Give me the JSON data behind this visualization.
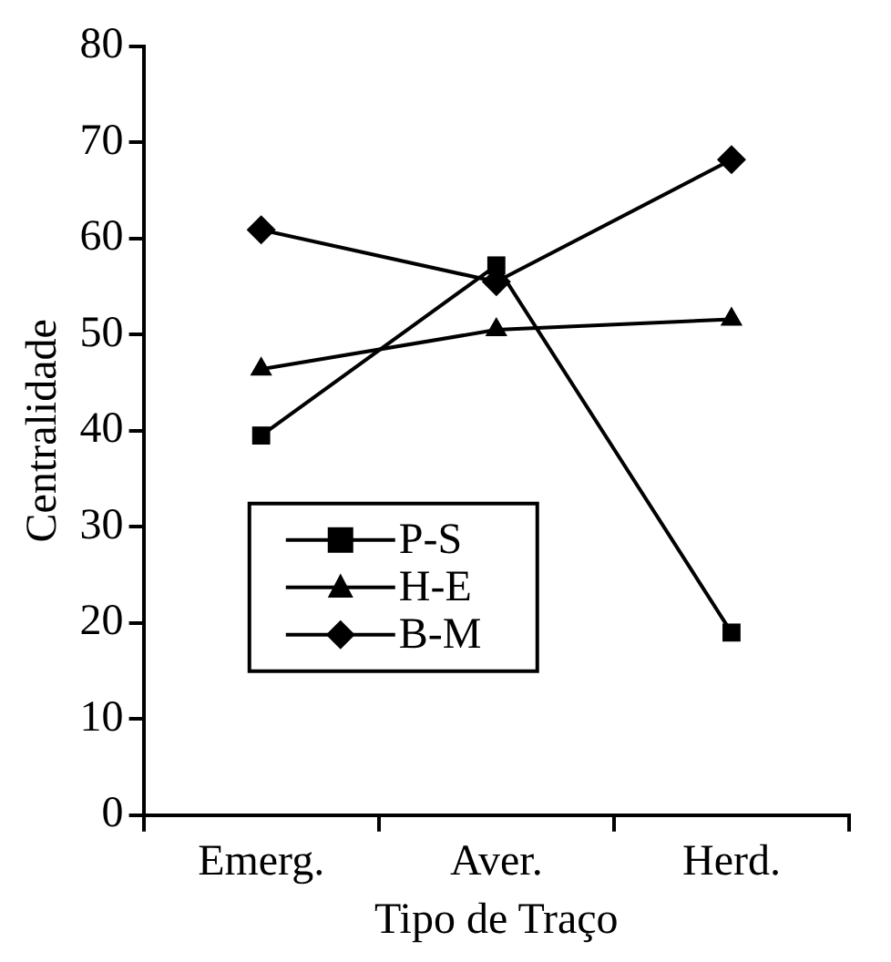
{
  "chart_data": {
    "type": "line",
    "xlabel": "Tipo de Traço",
    "ylabel": "Centralidade",
    "categories": [
      "Emerg.",
      "Aver.",
      "Herd."
    ],
    "series": [
      {
        "name": "P-S",
        "color": "#000000",
        "marker": "square",
        "values": [
          39.5,
          57.2,
          19
        ]
      },
      {
        "name": "H-E",
        "color": "#000000",
        "marker": "triangle",
        "values": [
          46.4,
          50.5,
          51.6
        ]
      },
      {
        "name": "B-M",
        "color": "#000000",
        "marker": "diamond",
        "values": [
          60.9,
          55.5,
          68.2
        ]
      }
    ],
    "ylim": [
      0,
      80
    ],
    "yticks": [
      0,
      10,
      20,
      30,
      40,
      50,
      60,
      70,
      80
    ],
    "grid": false,
    "legend": "center",
    "line_style": "solid"
  }
}
